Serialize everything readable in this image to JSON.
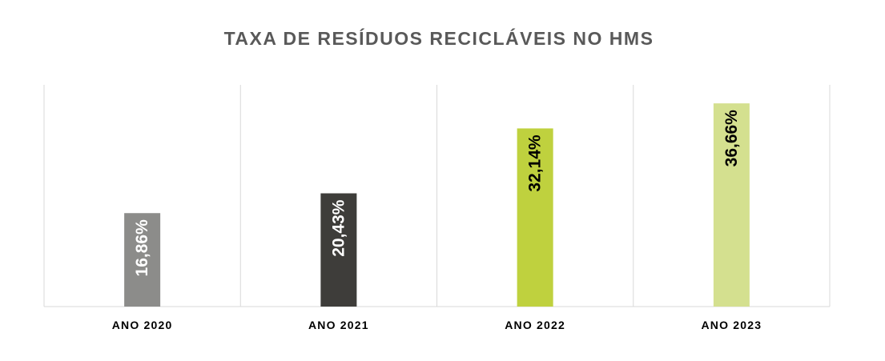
{
  "chart_data": {
    "type": "bar",
    "title": "TAXA DE RESÍDUOS RECICLÁVEIS NO HMS",
    "categories": [
      "ANO 2020",
      "ANO 2021",
      "ANO 2022",
      "ANO 2023"
    ],
    "values": [
      16.86,
      20.43,
      32.14,
      36.66
    ],
    "value_labels": [
      "16,86%",
      "20,43%",
      "32,14%",
      "36,66%"
    ],
    "bar_colors": [
      "#8C8C8A",
      "#3E3D3A",
      "#BFD13E",
      "#D4E08F"
    ],
    "label_colors": [
      "#ffffff",
      "#ffffff",
      "#000000",
      "#000000"
    ],
    "ylim": [
      0,
      40
    ],
    "grid": "vertical category separators",
    "legend": "none"
  }
}
